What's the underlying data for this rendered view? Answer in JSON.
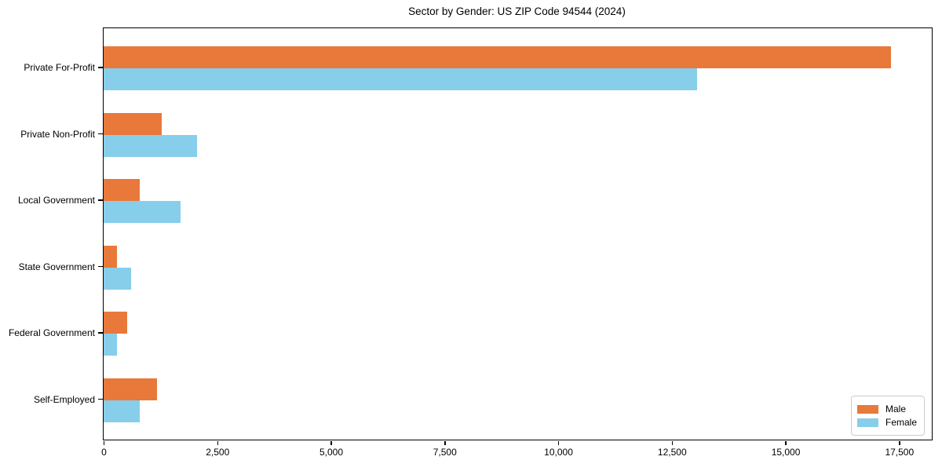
{
  "title": "Sector by Gender: US ZIP Code 94544 (2024)",
  "colors": {
    "male": "#E8793B",
    "female": "#87CEEB",
    "spine": "#000000",
    "background": "#FFFFFF",
    "legend_border": "#CCCCCC"
  },
  "legend": {
    "position": "lower right",
    "entries": [
      {
        "label": "Male",
        "color": "#E8793B"
      },
      {
        "label": "Female",
        "color": "#87CEEB"
      }
    ]
  },
  "chart_data": {
    "type": "bar",
    "orientation": "horizontal",
    "title": "Sector by Gender: US ZIP Code 94544 (2024)",
    "xlabel": "",
    "ylabel": "",
    "grid": false,
    "categories": [
      "Private For-Profit",
      "Private Non-Profit",
      "Local Government",
      "State Government",
      "Federal Government",
      "Self-Employed"
    ],
    "series": [
      {
        "name": "Male",
        "color": "#E8793B",
        "values": [
          17330,
          1280,
          790,
          290,
          520,
          1180
        ]
      },
      {
        "name": "Female",
        "color": "#87CEEB",
        "values": [
          13060,
          2060,
          1700,
          610,
          300,
          800
        ]
      }
    ],
    "xlim": [
      0,
      18220
    ],
    "x_ticks": {
      "values": [
        0,
        2500,
        5000,
        7500,
        10000,
        12500,
        15000,
        17500
      ],
      "labels": [
        "0",
        "2,500",
        "5,000",
        "7,500",
        "10,000",
        "12,500",
        "15,000",
        "17,500"
      ]
    }
  }
}
